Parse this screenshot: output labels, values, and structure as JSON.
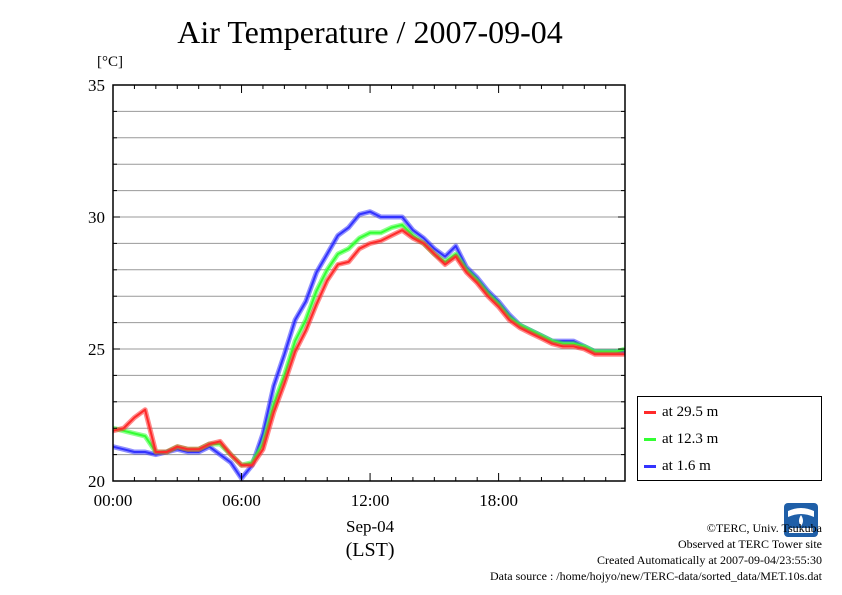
{
  "title": "Air Temperature / 2007-09-04",
  "unit": "[°C]",
  "colors": {
    "s1": "#ff2a2a",
    "s2": "#33ff33",
    "s3": "#3333ff",
    "logo": "#1f5fa8"
  },
  "legend": [
    {
      "label": "at 29.5 m",
      "color": "#ff2a2a"
    },
    {
      "label": "at 12.3 m",
      "color": "#33ff33"
    },
    {
      "label": "at 1.6 m",
      "color": "#3333ff"
    }
  ],
  "credits": {
    "line1": "©TERC, Univ. Tsukuba",
    "line2": "Observed at TERC Tower site",
    "line3": "Created Automatically at 2007-09-04/23:55:30",
    "line4": "Data source : /home/hojyo/new/TERC-data/sorted_data/MET.10s.dat"
  },
  "logo_icon": "terc-logo-icon",
  "chart_data": {
    "type": "line",
    "title": "Air Temperature / 2007-09-04",
    "ylabel": "[°C]",
    "xlabel": "(LST)",
    "date_label": "Sep-04",
    "xlim": [
      0,
      23.9
    ],
    "ylim": [
      20,
      35
    ],
    "xticks": [
      0,
      6,
      12,
      18
    ],
    "xtick_labels": [
      "00:00",
      "06:00",
      "12:00",
      "18:00"
    ],
    "yticks": [
      20,
      25,
      30,
      35
    ],
    "ytick_labels": [
      "20",
      "25",
      "30",
      "35"
    ],
    "grid": true,
    "legend_position": "right",
    "x": [
      0,
      0.5,
      1,
      1.5,
      2,
      2.5,
      3,
      3.5,
      4,
      4.5,
      5,
      5.5,
      6,
      6.5,
      7,
      7.5,
      8,
      8.5,
      9,
      9.5,
      10,
      10.5,
      11,
      11.5,
      12,
      12.5,
      13,
      13.5,
      14,
      14.5,
      15,
      15.5,
      16,
      16.5,
      17,
      17.5,
      18,
      18.5,
      19,
      19.5,
      20,
      20.5,
      21,
      21.5,
      22,
      22.5,
      23,
      23.5,
      23.9
    ],
    "series": [
      {
        "name": "at 29.5 m",
        "color": "#ff2a2a",
        "values": [
          21.9,
          22.0,
          22.4,
          22.7,
          21.1,
          21.1,
          21.3,
          21.2,
          21.2,
          21.4,
          21.5,
          21.0,
          20.6,
          20.6,
          21.2,
          22.6,
          23.7,
          24.9,
          25.7,
          26.7,
          27.6,
          28.2,
          28.3,
          28.8,
          29.0,
          29.1,
          29.3,
          29.5,
          29.2,
          29.0,
          28.6,
          28.2,
          28.5,
          27.9,
          27.5,
          27.0,
          26.6,
          26.1,
          25.8,
          25.6,
          25.4,
          25.2,
          25.1,
          25.1,
          25.0,
          24.8,
          24.8,
          24.8,
          24.8
        ]
      },
      {
        "name": "at 12.3 m",
        "color": "#33ff33",
        "values": [
          22.0,
          21.9,
          21.8,
          21.7,
          21.1,
          21.1,
          21.3,
          21.2,
          21.2,
          21.4,
          21.4,
          21.0,
          20.6,
          20.7,
          21.4,
          22.9,
          24.0,
          25.3,
          26.1,
          27.2,
          28.0,
          28.6,
          28.8,
          29.2,
          29.4,
          29.4,
          29.6,
          29.7,
          29.3,
          29.0,
          28.6,
          28.3,
          28.6,
          28.0,
          27.6,
          27.1,
          26.7,
          26.2,
          25.9,
          25.7,
          25.5,
          25.3,
          25.2,
          25.2,
          25.1,
          24.9,
          24.9,
          24.9,
          25.0
        ]
      },
      {
        "name": "at 1.6 m",
        "color": "#3333ff",
        "values": [
          21.3,
          21.2,
          21.1,
          21.1,
          21.0,
          21.1,
          21.2,
          21.1,
          21.1,
          21.3,
          21.0,
          20.7,
          20.1,
          20.6,
          21.8,
          23.6,
          24.8,
          26.1,
          26.8,
          27.9,
          28.6,
          29.3,
          29.6,
          30.1,
          30.2,
          30.0,
          30.0,
          30.0,
          29.5,
          29.2,
          28.8,
          28.5,
          28.9,
          28.1,
          27.7,
          27.2,
          26.8,
          26.3,
          25.9,
          25.7,
          25.5,
          25.3,
          25.3,
          25.3,
          25.1,
          24.9,
          24.9,
          24.9,
          24.9
        ]
      }
    ]
  }
}
